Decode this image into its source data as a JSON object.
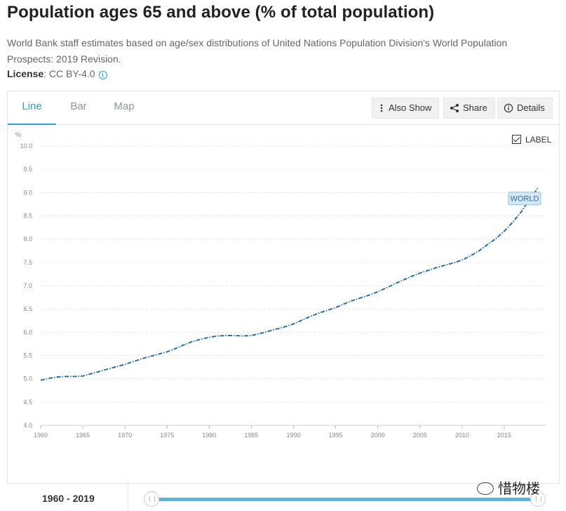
{
  "page": {
    "title": "Population ages 65 and above (% of total population)",
    "description": "World Bank staff estimates based on age/sex distributions of United Nations Population Division's World Population Prospects: 2019 Revision.",
    "license_label": "License",
    "license_value": ": CC BY-4.0"
  },
  "tabs": [
    {
      "label": "Line"
    },
    {
      "label": "Bar"
    },
    {
      "label": "Map"
    }
  ],
  "toolbar": {
    "also_show": "Also Show",
    "share": "Share",
    "details": "Details"
  },
  "label_toggle": "LABEL",
  "colors": {
    "accent": "#2a9fd8",
    "series": "#2f6f9f",
    "slider": "#58b4e6"
  },
  "range": {
    "text": "1960 - 2019"
  },
  "watermark": {
    "text": "惜物楼"
  },
  "chart_data": {
    "type": "line",
    "title": "Population ages 65 and above (% of total population)",
    "ylabel": "%",
    "xlabel": "",
    "ylim": [
      4.0,
      10.0
    ],
    "yticks": [
      4.0,
      4.5,
      5.0,
      5.5,
      6.0,
      6.5,
      7.0,
      7.5,
      8.0,
      8.5,
      9.0,
      9.5,
      10.0
    ],
    "xticks": [
      1960,
      1965,
      1970,
      1975,
      1980,
      1985,
      1990,
      1995,
      2000,
      2005,
      2010,
      2015
    ],
    "grid": true,
    "series": [
      {
        "name": "WORLD",
        "x": [
          1960,
          1961,
          1962,
          1963,
          1964,
          1965,
          1966,
          1967,
          1968,
          1969,
          1970,
          1971,
          1972,
          1973,
          1974,
          1975,
          1976,
          1977,
          1978,
          1979,
          1980,
          1981,
          1982,
          1983,
          1984,
          1985,
          1986,
          1987,
          1988,
          1989,
          1990,
          1991,
          1992,
          1993,
          1994,
          1995,
          1996,
          1997,
          1998,
          1999,
          2000,
          2001,
          2002,
          2003,
          2004,
          2005,
          2006,
          2007,
          2008,
          2009,
          2010,
          2011,
          2012,
          2013,
          2014,
          2015,
          2016,
          2017,
          2018,
          2019
        ],
        "values": [
          4.97,
          5.01,
          5.04,
          5.05,
          5.05,
          5.06,
          5.11,
          5.16,
          5.21,
          5.26,
          5.31,
          5.37,
          5.43,
          5.48,
          5.53,
          5.58,
          5.65,
          5.73,
          5.8,
          5.85,
          5.89,
          5.92,
          5.93,
          5.93,
          5.92,
          5.93,
          5.97,
          6.02,
          6.07,
          6.12,
          6.18,
          6.26,
          6.34,
          6.41,
          6.47,
          6.53,
          6.61,
          6.68,
          6.74,
          6.8,
          6.87,
          6.95,
          7.04,
          7.12,
          7.2,
          7.27,
          7.33,
          7.39,
          7.44,
          7.49,
          7.55,
          7.64,
          7.75,
          7.88,
          8.01,
          8.17,
          8.36,
          8.58,
          8.85,
          9.1
        ]
      }
    ]
  }
}
